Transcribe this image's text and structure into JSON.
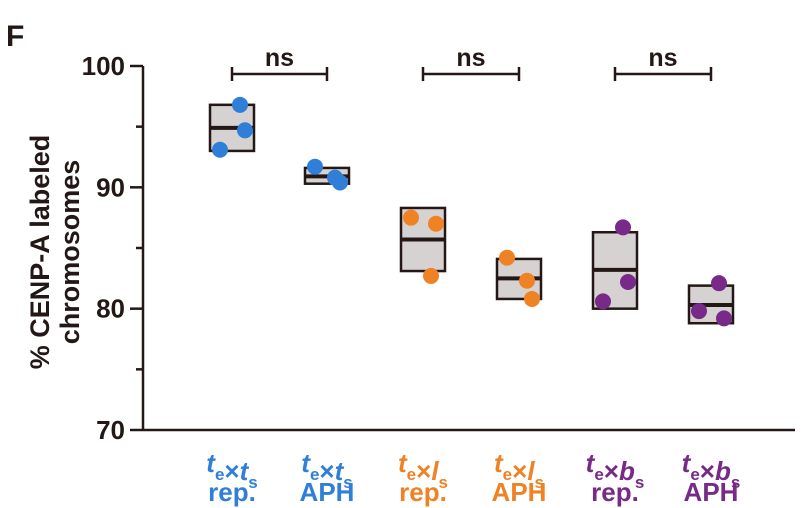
{
  "panel_label": "F",
  "chart_data": {
    "type": "box-dot",
    "ylabel_line1": "% CENP-A labeled",
    "ylabel_line2": "chromosomes",
    "ylim": [
      70,
      100
    ],
    "yticks": [
      70,
      80,
      90,
      100
    ],
    "groups": [
      {
        "top_a": "t",
        "sub_a": "e",
        "op": "×",
        "top_b": "t",
        "sub_b": "s",
        "bottom": "rep.",
        "color": "#2f7fd8",
        "points": [
          93.1,
          96.8,
          94.7
        ],
        "box_low": 93.0,
        "box_high": 96.8,
        "median": 94.9
      },
      {
        "top_a": "t",
        "sub_a": "e",
        "op": "×",
        "top_b": "t",
        "sub_b": "s",
        "bottom": "APH",
        "color": "#2f7fd8",
        "points": [
          91.7,
          90.8,
          90.4
        ],
        "box_low": 90.3,
        "box_high": 91.6,
        "median": 90.9
      },
      {
        "top_a": "t",
        "sub_a": "e",
        "op": "×",
        "top_b": "l",
        "sub_b": "s",
        "bottom": "rep.",
        "color": "#ef8224",
        "points": [
          87.5,
          82.7,
          87.0
        ],
        "box_low": 83.1,
        "box_high": 88.3,
        "median": 85.7
      },
      {
        "top_a": "t",
        "sub_a": "e",
        "op": "×",
        "top_b": "l",
        "sub_b": "s",
        "bottom": "APH",
        "color": "#ef8224",
        "points": [
          84.2,
          82.3,
          80.8
        ],
        "box_low": 80.8,
        "box_high": 84.1,
        "median": 82.5
      },
      {
        "top_a": "t",
        "sub_a": "e",
        "op": "×",
        "top_b": "b",
        "sub_b": "s",
        "bottom": "rep.",
        "color": "#772a88",
        "points": [
          80.6,
          86.7,
          82.2
        ],
        "box_low": 80.0,
        "box_high": 86.3,
        "median": 83.2
      },
      {
        "top_a": "t",
        "sub_a": "e",
        "op": "×",
        "top_b": "b",
        "sub_b": "s",
        "bottom": "APH",
        "color": "#772a88",
        "points": [
          79.8,
          82.1,
          79.2
        ],
        "box_low": 78.8,
        "box_high": 81.9,
        "median": 80.3
      }
    ],
    "comparisons": [
      {
        "from": 0,
        "to": 1,
        "label": "ns"
      },
      {
        "from": 2,
        "to": 3,
        "label": "ns"
      },
      {
        "from": 4,
        "to": 5,
        "label": "ns"
      }
    ],
    "box_fill": "#d6d2d2",
    "axis_color": "#231815"
  }
}
